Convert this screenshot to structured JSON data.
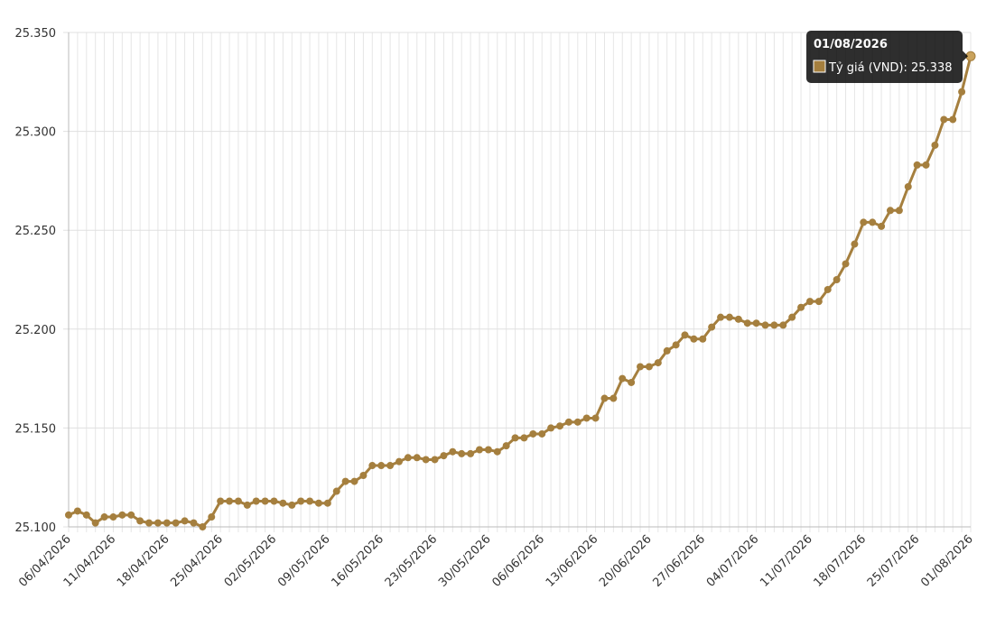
{
  "chart_data": {
    "type": "line",
    "categories": [
      "06/04/2026",
      null,
      null,
      null,
      null,
      "11/04/2026",
      null,
      null,
      null,
      null,
      null,
      "18/04/2026",
      null,
      null,
      null,
      null,
      null,
      "25/04/2026",
      null,
      null,
      null,
      null,
      null,
      "02/05/2026",
      null,
      null,
      null,
      null,
      null,
      "09/05/2026",
      null,
      null,
      null,
      null,
      null,
      "16/05/2026",
      null,
      null,
      null,
      null,
      null,
      "23/05/2026",
      null,
      null,
      null,
      null,
      null,
      "30/05/2026",
      null,
      null,
      null,
      null,
      null,
      "06/06/2026",
      null,
      null,
      null,
      null,
      null,
      "13/06/2026",
      null,
      null,
      null,
      null,
      null,
      "20/06/2026",
      null,
      null,
      null,
      null,
      null,
      "27/06/2026",
      null,
      null,
      null,
      null,
      null,
      "04/07/2026",
      null,
      null,
      null,
      null,
      null,
      "11/07/2026",
      null,
      null,
      null,
      null,
      null,
      "18/07/2026",
      null,
      null,
      null,
      null,
      null,
      "25/07/2026",
      null,
      null,
      null,
      null,
      null,
      "01/08/2026"
    ],
    "series": [
      {
        "color": "#a57f3e",
        "values": [
          25106,
          25108,
          25106,
          25102,
          25105,
          25105,
          25106,
          25106,
          25103,
          25102,
          25102,
          25102,
          25102,
          25103,
          25102,
          25100,
          25105,
          25113,
          25113,
          25113,
          25111,
          25113,
          25113,
          25113,
          25112,
          25111,
          25113,
          25113,
          25112,
          25112,
          25118,
          25123,
          25123,
          25126,
          25131,
          25131,
          25131,
          25133,
          25135,
          25135,
          25134,
          25134,
          25136,
          25138,
          25137,
          25137,
          25139,
          25139,
          25138,
          25141,
          25145,
          25145,
          25147,
          25147,
          25150,
          25151,
          25153,
          25153,
          25155,
          25155,
          25165,
          25165,
          25175,
          25173,
          25181,
          25181,
          25183,
          25189,
          25192,
          25197,
          25195,
          25195,
          25201,
          25206,
          25206,
          25205,
          25203,
          25203,
          25202,
          25202,
          25202,
          25206,
          25211,
          25214,
          25214,
          25220,
          25225,
          25233,
          25243,
          25254,
          25254,
          25252,
          25260,
          25260,
          25272,
          25283,
          25283,
          25293,
          25306,
          25306,
          25320,
          25338
        ]
      }
    ],
    "ylim": [
      25100,
      25350
    ],
    "yticks": [
      {
        "value": 25100,
        "label": "25.100"
      },
      {
        "value": 25150,
        "label": "25.150"
      },
      {
        "value": 25200,
        "label": "25.200"
      },
      {
        "value": 25250,
        "label": "25.250"
      },
      {
        "value": 25300,
        "label": "25.300"
      },
      {
        "value": 25350,
        "label": "25.350"
      }
    ],
    "grid": true,
    "tooltip": {
      "title": "01/08/2026",
      "label": "Tỷ giá (VND): 25.338"
    }
  }
}
